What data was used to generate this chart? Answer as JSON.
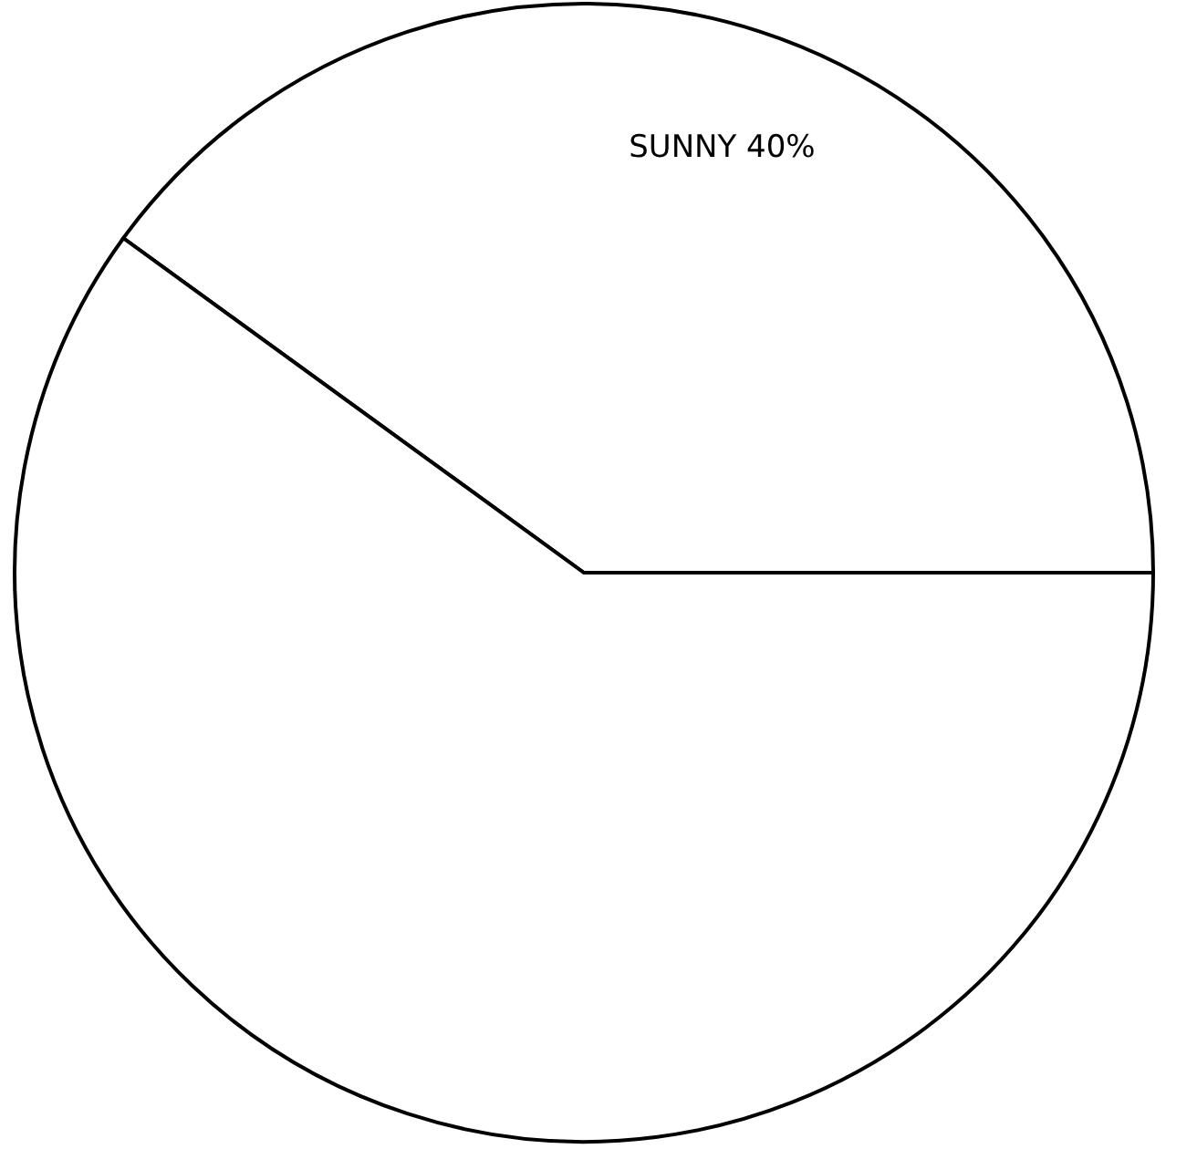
{
  "chart_data": {
    "type": "pie",
    "categories": [
      "SUNNY",
      null
    ],
    "values": [
      40,
      60
    ],
    "value_labels": [
      "40%",
      null
    ],
    "colors": [
      "#ffffff",
      "#ffffff"
    ],
    "legend": false
  }
}
